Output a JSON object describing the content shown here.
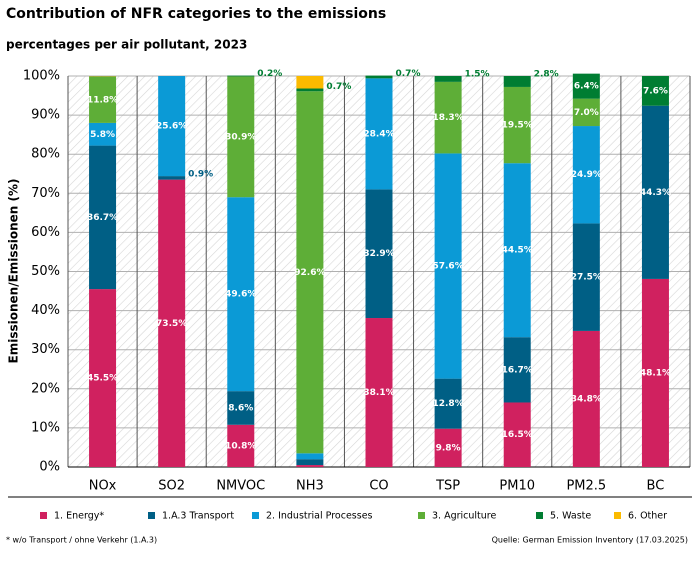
{
  "chart_data": {
    "type": "stacked_bar",
    "title": "Contribution of NFR categories to the emissions",
    "subtitle": "percentages per air pollutant, 2023",
    "y_label": "Emissionen/Emissionen (%)",
    "footnote": "* w/o Transport / ohne Verkehr (1.A.3)",
    "source": "Quelle: German Emission Inventory (17.03.2025)",
    "categories": [
      "NOx",
      "SO2",
      "NMVOC",
      "NH3",
      "CO",
      "TSP",
      "PM10",
      "PM2.5",
      "BC"
    ],
    "series": [
      {
        "name": "1. Energy*",
        "color": "#d0215f",
        "values": [
          45.5,
          73.5,
          10.8,
          0.5,
          38.1,
          9.8,
          16.5,
          34.8,
          48.1
        ],
        "value_labels": [
          "45.5%",
          "73.5%",
          "10.8%",
          null,
          "38.1%",
          "9.8%",
          "16.5%",
          "34.8%",
          "48.1%"
        ]
      },
      {
        "name": "1.A.3 Transport",
        "color": "#005f85",
        "values": [
          36.7,
          0.9,
          8.6,
          1.5,
          32.9,
          12.8,
          16.7,
          27.5,
          44.3
        ],
        "value_labels": [
          "36.7%",
          "0.9%",
          "8.6%",
          null,
          "32.9%",
          "12.8%",
          "16.7%",
          "27.5%",
          "44.3%"
        ]
      },
      {
        "name": "2. Industrial Processes",
        "color": "#0b9ad6",
        "values": [
          5.8,
          25.6,
          49.6,
          1.5,
          28.4,
          57.6,
          44.5,
          24.9,
          0
        ],
        "value_labels": [
          "5.8%",
          "25.6%",
          "49.6%",
          null,
          "28.4%",
          "57.6%",
          "44.5%",
          "24.9%",
          null
        ]
      },
      {
        "name": "3. Agriculture",
        "color": "#5eae37",
        "values": [
          11.8,
          0,
          30.9,
          92.6,
          0,
          18.3,
          19.5,
          7.0,
          0
        ],
        "value_labels": [
          "11.8%",
          null,
          "30.9%",
          "92.6%",
          null,
          "18.3%",
          "19.5%",
          "7.0%",
          null
        ]
      },
      {
        "name": "5. Waste",
        "color": "#007d32",
        "values": [
          0.1,
          0,
          0.2,
          0.7,
          0.7,
          1.5,
          2.8,
          6.4,
          7.6
        ],
        "value_labels": [
          null,
          null,
          "0.2%",
          "0.7%",
          "0.7%",
          "1.5%",
          "2.8%",
          "6.4%",
          "7.6%"
        ]
      },
      {
        "name": "6. Other",
        "color": "#fbba00",
        "values": [
          0.1,
          0,
          0,
          3.2,
          0,
          0,
          0,
          0,
          0
        ],
        "value_labels": [
          null,
          null,
          null,
          null,
          null,
          null,
          null,
          null,
          null
        ]
      }
    ],
    "ylim": [
      0,
      100
    ],
    "yticks": [
      {
        "value": 0,
        "label": "0%"
      },
      {
        "value": 10,
        "label": "10%"
      },
      {
        "value": 20,
        "label": "20%"
      },
      {
        "value": 30,
        "label": "30%"
      },
      {
        "value": 40,
        "label": "40%"
      },
      {
        "value": 50,
        "label": "50%"
      },
      {
        "value": 60,
        "label": "60%"
      },
      {
        "value": 70,
        "label": "70%"
      },
      {
        "value": 80,
        "label": "80%"
      },
      {
        "value": 90,
        "label": "90%"
      },
      {
        "value": 100,
        "label": "100%"
      }
    ],
    "grid": true
  }
}
